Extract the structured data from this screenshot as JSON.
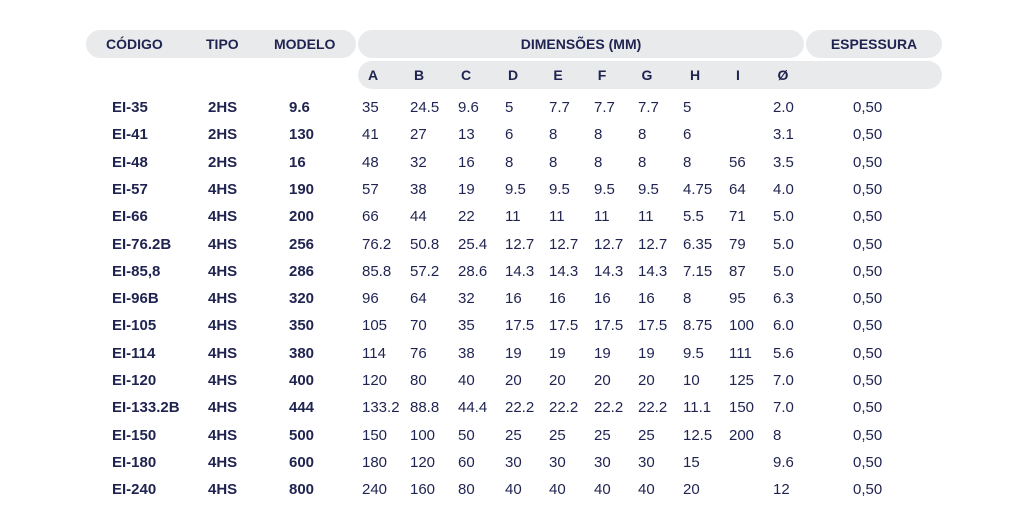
{
  "header": {
    "codigo": "CÓDIGO",
    "tipo": "TIPO",
    "modelo": "MODELO",
    "dimensoes": "DIMENSÕES (MM)",
    "espessura": "ESPESSURA",
    "dims": [
      "A",
      "B",
      "C",
      "D",
      "E",
      "F",
      "G",
      "H",
      "I",
      "Ø"
    ]
  },
  "rows": [
    {
      "codigo": "EI-35",
      "tipo": "2HS",
      "modelo": "9.6",
      "dims": [
        "35",
        "24.5",
        "9.6",
        "5",
        "7.7",
        "7.7",
        "7.7",
        "5",
        "",
        "2.0"
      ],
      "espessura": "0,50"
    },
    {
      "codigo": "EI-41",
      "tipo": "2HS",
      "modelo": "130",
      "dims": [
        "41",
        "27",
        "13",
        "6",
        "8",
        "8",
        "8",
        "6",
        "",
        "3.1"
      ],
      "espessura": "0,50"
    },
    {
      "codigo": "EI-48",
      "tipo": "2HS",
      "modelo": "16",
      "dims": [
        "48",
        "32",
        "16",
        "8",
        "8",
        "8",
        "8",
        "8",
        "56",
        "3.5"
      ],
      "espessura": "0,50"
    },
    {
      "codigo": "EI-57",
      "tipo": "4HS",
      "modelo": "190",
      "dims": [
        "57",
        "38",
        "19",
        "9.5",
        "9.5",
        "9.5",
        "9.5",
        "4.75",
        "64",
        "4.0"
      ],
      "espessura": "0,50"
    },
    {
      "codigo": "EI-66",
      "tipo": "4HS",
      "modelo": "200",
      "dims": [
        "66",
        "44",
        "22",
        "11",
        "11",
        "11",
        "11",
        "5.5",
        "71",
        "5.0"
      ],
      "espessura": "0,50"
    },
    {
      "codigo": "EI-76.2B",
      "tipo": "4HS",
      "modelo": "256",
      "dims": [
        "76.2",
        "50.8",
        "25.4",
        "12.7",
        "12.7",
        "12.7",
        "12.7",
        "6.35",
        "79",
        "5.0"
      ],
      "espessura": "0,50"
    },
    {
      "codigo": "EI-85,8",
      "tipo": "4HS",
      "modelo": "286",
      "dims": [
        "85.8",
        "57.2",
        "28.6",
        "14.3",
        "14.3",
        "14.3",
        "14.3",
        "7.15",
        "87",
        "5.0"
      ],
      "espessura": "0,50"
    },
    {
      "codigo": "EI-96B",
      "tipo": "4HS",
      "modelo": "320",
      "dims": [
        "96",
        "64",
        "32",
        "16",
        "16",
        "16",
        "16",
        "8",
        "95",
        "6.3"
      ],
      "espessura": "0,50"
    },
    {
      "codigo": "EI-105",
      "tipo": "4HS",
      "modelo": "350",
      "dims": [
        "105",
        "70",
        "35",
        "17.5",
        "17.5",
        "17.5",
        "17.5",
        "8.75",
        "100",
        "6.0"
      ],
      "espessura": "0,50"
    },
    {
      "codigo": "EI-114",
      "tipo": "4HS",
      "modelo": "380",
      "dims": [
        "114",
        "76",
        "38",
        "19",
        "19",
        "19",
        "19",
        "9.5",
        "111",
        "5.6"
      ],
      "espessura": "0,50"
    },
    {
      "codigo": "EI-120",
      "tipo": "4HS",
      "modelo": "400",
      "dims": [
        "120",
        "80",
        "40",
        "20",
        "20",
        "20",
        "20",
        "10",
        "125",
        "7.0"
      ],
      "espessura": "0,50"
    },
    {
      "codigo": "EI-133.2B",
      "tipo": "4HS",
      "modelo": "444",
      "dims": [
        "133.2",
        "88.8",
        "44.4",
        "22.2",
        "22.2",
        "22.2",
        "22.2",
        "11.1",
        "150",
        "7.0"
      ],
      "espessura": "0,50"
    },
    {
      "codigo": "EI-150",
      "tipo": "4HS",
      "modelo": "500",
      "dims": [
        "150",
        "100",
        "50",
        "25",
        "25",
        "25",
        "25",
        "12.5",
        "200",
        "8"
      ],
      "espessura": "0,50"
    },
    {
      "codigo": "EI-180",
      "tipo": "4HS",
      "modelo": "600",
      "dims": [
        "180",
        "120",
        "60",
        "30",
        "30",
        "30",
        "30",
        "15",
        "",
        "9.6"
      ],
      "espessura": "0,50"
    },
    {
      "codigo": "EI-240",
      "tipo": "4HS",
      "modelo": "800",
      "dims": [
        "240",
        "160",
        "80",
        "40",
        "40",
        "40",
        "40",
        "20",
        "",
        "12"
      ],
      "espessura": "0,50"
    }
  ]
}
